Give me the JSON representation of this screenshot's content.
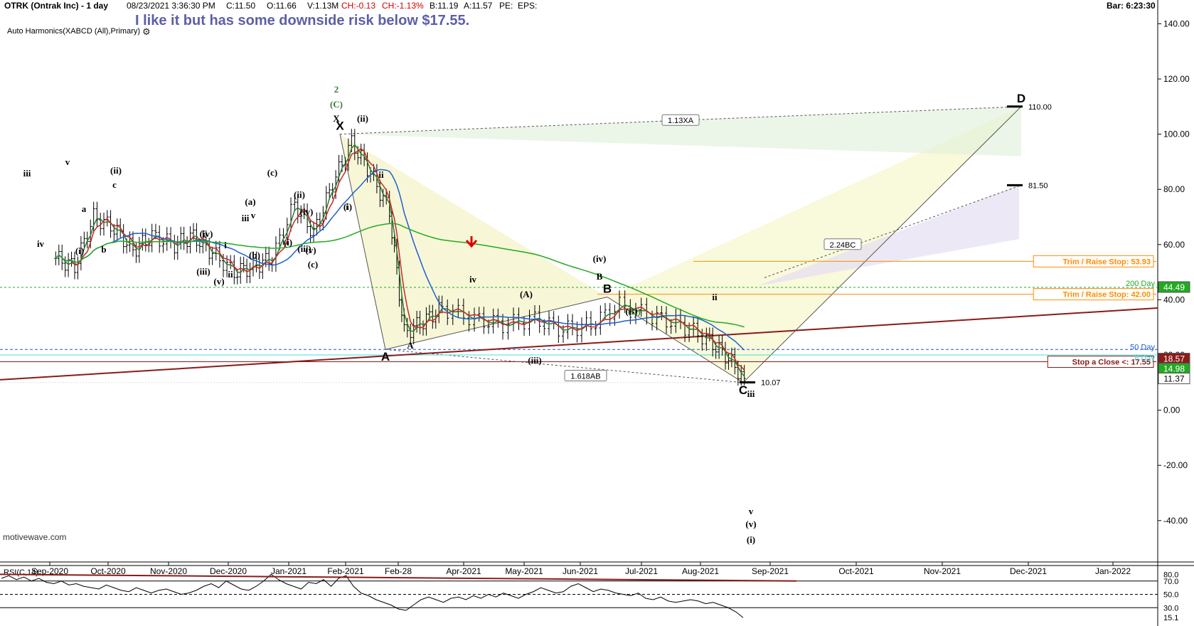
{
  "header": {
    "symbol": "OTRK (Ontrak Inc) - 1 day",
    "datetime": "08/23/2021 3:36:30 PM",
    "close": "C:11.50",
    "open": "O:11.66",
    "volume": "V:1.13M",
    "change": "CH:-0.13",
    "change_pct": "CH:-1.13%",
    "bid": "B:11.19",
    "ask": "A:11.57",
    "pe": "PE:",
    "eps": "EPS:",
    "bar_timer": "Bar: 6:23:30"
  },
  "note": "I like it but has some downside risk below $17.55.",
  "study_label": "Auto Harmonics(XABCD (All),Primary)",
  "gear_icon": "gear-icon",
  "watermark": "motivewave.com",
  "colors": {
    "candle": "#000000",
    "ma_fast": "#2e7d32",
    "ma_slow": "#c62828",
    "ma_50": "#1e5fd0",
    "ma_200": "#22aa22",
    "trend": "#8b1a1a",
    "trim": "#ff8c00",
    "stop": "#8b1a1a",
    "rsi": "#000000",
    "note": "#5b5fa8"
  },
  "chart_data": [
    {
      "type": "candlestick",
      "x_ticks": [
        "Sep-2020",
        "Oct-2020",
        "Nov-2020",
        "Dec-2020",
        "Jan-2021",
        "Feb-2021",
        "Feb-28",
        "Apr-2021",
        "May-2021",
        "Jun-2021",
        "Jul-2021",
        "Aug-2021",
        "Sep-2021",
        "Oct-2021",
        "Nov-2021",
        "Dec-2021",
        "Jan-2022"
      ],
      "y_ticks": [
        "140.00",
        "120.00",
        "100.00",
        "80.00",
        "60.00",
        "40.00",
        "20.00",
        "0.00",
        "-20.00",
        "-40.00"
      ],
      "ylim": [
        -55,
        145
      ],
      "close_path": [
        {
          "t": "Sep-2020",
          "v": 55
        },
        {
          "t": "Sep-2020",
          "v": 52
        },
        {
          "t": "Sep-2020",
          "v": 70
        },
        {
          "t": "Oct-2020",
          "v": 66
        },
        {
          "t": "Oct-2020",
          "v": 58
        },
        {
          "t": "Oct-2020",
          "v": 63
        },
        {
          "t": "Nov-2020",
          "v": 60
        },
        {
          "t": "Nov-2020",
          "v": 63
        },
        {
          "t": "Nov-2020",
          "v": 57
        },
        {
          "t": "Dec-2020",
          "v": 50
        },
        {
          "t": "Dec-2020",
          "v": 52
        },
        {
          "t": "Dec-2020",
          "v": 55
        },
        {
          "t": "Jan-2021",
          "v": 75
        },
        {
          "t": "Jan-2021",
          "v": 64
        },
        {
          "t": "Jan-2021",
          "v": 82
        },
        {
          "t": "Feb-2021",
          "v": 97
        },
        {
          "t": "Feb-2021",
          "v": 86
        },
        {
          "t": "Feb-2021",
          "v": 72
        },
        {
          "t": "Feb-28",
          "v": 28
        },
        {
          "t": "Feb-28",
          "v": 32
        },
        {
          "t": "Feb-28",
          "v": 37
        },
        {
          "t": "Apr-2021",
          "v": 33
        },
        {
          "t": "Apr-2021",
          "v": 31
        },
        {
          "t": "May-2021",
          "v": 33
        },
        {
          "t": "May-2021",
          "v": 29
        },
        {
          "t": "Jun-2021",
          "v": 31
        },
        {
          "t": "Jun-2021",
          "v": 38
        },
        {
          "t": "Jul-2021",
          "v": 34
        },
        {
          "t": "Jul-2021",
          "v": 31
        },
        {
          "t": "Aug-2021",
          "v": 26
        },
        {
          "t": "Aug-2021",
          "v": 20
        },
        {
          "t": "Aug-2021",
          "v": 11.5
        }
      ],
      "levels": [
        {
          "label": "Trim / Raise Stop: 53.93",
          "value": 53.93,
          "color": "#ff8c00"
        },
        {
          "label": "Trim / Raise Stop: 42.00",
          "value": 42.0,
          "color": "#ff8c00"
        },
        {
          "label": "Stop a Close <: 17.55",
          "value": 17.55,
          "color": "#8b1a1a"
        }
      ],
      "price_tags": [
        {
          "text": "44.49",
          "value": 44.49,
          "bg": "#22aa22",
          "fg": "#ffffff"
        },
        {
          "text": "18.57",
          "value": 18.57,
          "bg": "#8b1a1a",
          "fg": "#ffffff"
        },
        {
          "text": "14.98",
          "value": 14.98,
          "bg": "#22aa22",
          "fg": "#ffffff"
        },
        {
          "text": "11.37",
          "value": 11.37,
          "bg": "#ffffff",
          "fg": "#000000"
        }
      ],
      "ma_labels": [
        "200 Day",
        "50 Day",
        "8 Day"
      ],
      "harmonic": {
        "points": [
          {
            "label": "X",
            "t": "Feb-2021",
            "v": 100
          },
          {
            "label": "A",
            "t": "Feb-28",
            "v": 22
          },
          {
            "label": "B",
            "t": "Jun-2021",
            "v": 41
          },
          {
            "label": "C",
            "t": "Aug-2021",
            "v": 10
          },
          {
            "label": "D",
            "t": "Dec-2021",
            "v": 110
          }
        ],
        "ratios": [
          "1.13XA",
          "1.618AB",
          "2.24BC"
        ],
        "targets": [
          {
            "text": "110.00",
            "value": 110.0
          },
          {
            "text": "81.50",
            "value": 81.5
          },
          {
            "text": "10.07",
            "value": 10.07
          }
        ]
      },
      "waves": [
        "iii",
        "v",
        "(ii)",
        "c",
        "iv",
        "(i)",
        "b",
        "a",
        "(iv)",
        "(iii)",
        "i",
        "ii",
        "(v)",
        "(a)",
        "iii",
        "v",
        "(b)",
        "(c)",
        "(ii)",
        "(i)",
        "(iv)",
        "(iii)",
        "(v)",
        "(c)",
        "X",
        "(C)",
        "2",
        "(ii)",
        "ii",
        "i",
        "(i)",
        "A",
        "iv",
        "(iii)",
        "(iv)",
        "B",
        "(A)",
        "(B)",
        "(C)",
        "ii",
        "iii",
        "v",
        "(v)",
        "(i)"
      ]
    },
    {
      "type": "line",
      "title": "RSI(C,14)",
      "y_ticks": [
        "80.0",
        "70.0",
        "50.0",
        "30.0",
        "15.1"
      ],
      "ylim": [
        10,
        90
      ],
      "levels": [
        70,
        50,
        30
      ],
      "values": [
        74,
        78,
        72,
        76,
        70,
        74,
        68,
        66,
        70,
        64,
        66,
        62,
        60,
        58,
        64,
        60,
        56,
        54,
        60,
        56,
        52,
        56,
        58,
        54,
        50,
        52,
        56,
        62,
        66,
        60,
        70,
        64,
        58,
        56,
        62,
        70,
        80,
        72,
        66,
        62,
        58,
        68,
        66,
        72,
        62,
        74,
        78,
        62,
        52,
        48,
        42,
        38,
        34,
        28,
        26,
        34,
        42,
        46,
        42,
        38,
        44,
        46,
        42,
        48,
        44,
        50,
        46,
        52,
        48,
        44,
        50,
        54,
        60,
        56,
        52,
        54,
        62,
        66,
        60,
        54,
        58,
        56,
        52,
        50,
        48,
        52,
        44,
        42,
        46,
        40,
        38,
        40,
        42,
        40,
        36,
        38,
        34,
        30,
        24,
        15.1
      ]
    }
  ]
}
